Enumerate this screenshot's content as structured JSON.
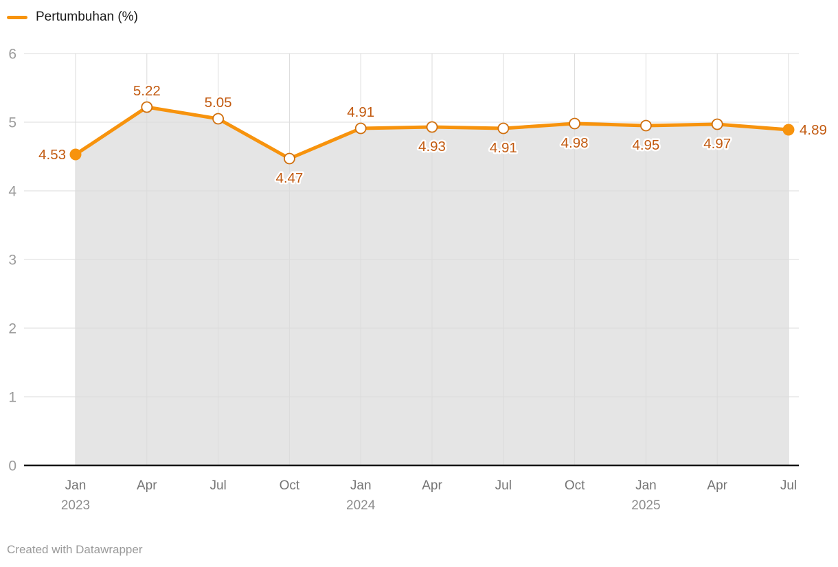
{
  "legend": {
    "label": "Pertumbuhan (%)"
  },
  "attribution": "Created with Datawrapper",
  "colors": {
    "line": "#F7930D",
    "area": "#E5E5E5",
    "grid": "#DBDBDB",
    "axis": "#151515",
    "value_label": "#C25A10",
    "marker_ring": "#D0700F",
    "marker_fill": "#FFFFFF",
    "y_tick": "#9B9B9B",
    "x_tick": "#757575",
    "year_tick": "#8C8C8C",
    "legend_text": "#1A1A1A",
    "attribution_text": "#9A9A9A",
    "halo": "#FFFFFF"
  },
  "chart_data": {
    "type": "line",
    "title": "",
    "legend_entries": [
      "Pertumbuhan (%)"
    ],
    "legend_position": "top-left",
    "grid": true,
    "area_fill": true,
    "ylim": [
      0,
      6
    ],
    "y_ticks": [
      0,
      1,
      2,
      3,
      4,
      5,
      6
    ],
    "x": [
      {
        "month": "Jan",
        "year": "2023"
      },
      {
        "month": "Apr",
        "year": ""
      },
      {
        "month": "Jul",
        "year": ""
      },
      {
        "month": "Oct",
        "year": ""
      },
      {
        "month": "Jan",
        "year": "2024"
      },
      {
        "month": "Apr",
        "year": ""
      },
      {
        "month": "Jul",
        "year": ""
      },
      {
        "month": "Oct",
        "year": ""
      },
      {
        "month": "Jan",
        "year": "2025"
      },
      {
        "month": "Apr",
        "year": ""
      },
      {
        "month": "Jul",
        "year": ""
      }
    ],
    "series": [
      {
        "name": "Pertumbuhan (%)",
        "values": [
          4.53,
          5.22,
          5.05,
          4.47,
          4.91,
          4.93,
          4.91,
          4.98,
          4.95,
          4.97,
          4.89
        ],
        "value_labels": [
          "4.53",
          "5.22",
          "5.05",
          "4.47",
          "4.91",
          "4.93",
          "4.91",
          "4.98",
          "4.95",
          "4.97",
          "4.89"
        ],
        "label_positions": [
          "left",
          "above",
          "above",
          "below",
          "above",
          "below",
          "below",
          "below",
          "below",
          "below",
          "right"
        ],
        "marker_styles": [
          "filled",
          "open",
          "open",
          "open",
          "open",
          "open",
          "open",
          "open",
          "open",
          "open",
          "filled"
        ]
      }
    ]
  }
}
